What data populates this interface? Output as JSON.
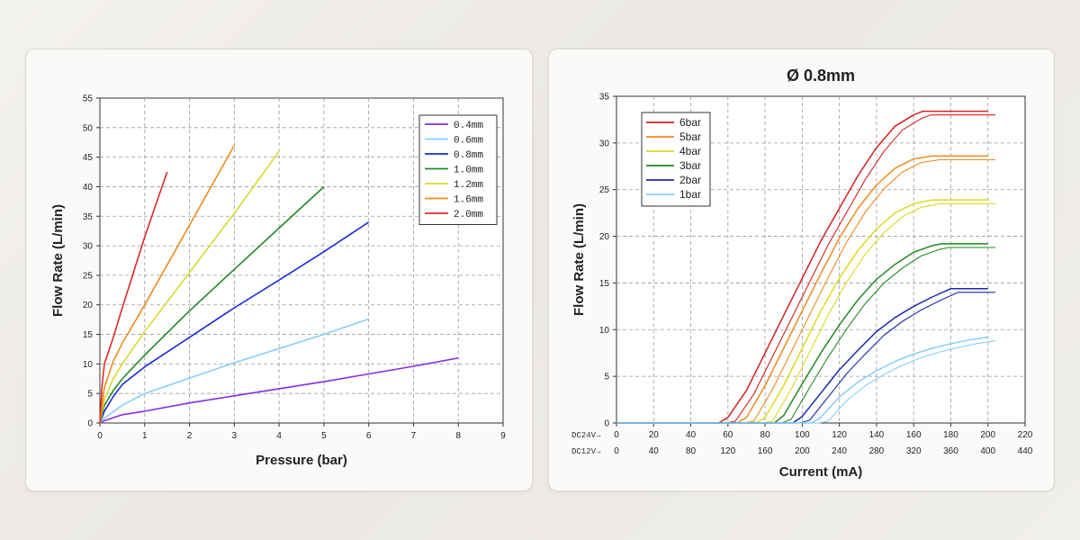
{
  "chart_data": [
    {
      "type": "line",
      "title": "",
      "xlabel": "Pressure (bar)",
      "ylabel": "Flow Rate (L/min)",
      "xlim": [
        0,
        9
      ],
      "ylim": [
        0,
        55
      ],
      "x_ticks": [
        "0",
        "1",
        "2",
        "3",
        "4",
        "5",
        "6",
        "7",
        "8",
        "9"
      ],
      "y_ticks": [
        "0",
        "5",
        "10",
        "15",
        "20",
        "25",
        "30",
        "35",
        "40",
        "45",
        "50",
        "55"
      ],
      "grid": true,
      "legend_position": "top-right",
      "series": [
        {
          "name": "0.4mm",
          "color": "#8a2be2",
          "x": [
            0,
            0.1,
            0.5,
            1,
            2,
            3,
            4,
            5,
            6,
            7,
            8
          ],
          "y": [
            0,
            0.4,
            1.4,
            2.0,
            3.4,
            4.6,
            5.8,
            7.0,
            8.3,
            9.6,
            11.0
          ]
        },
        {
          "name": "0.6mm",
          "color": "#87cefa",
          "x": [
            0,
            0.1,
            0.5,
            1,
            2,
            3,
            4,
            5,
            6
          ],
          "y": [
            0,
            0.8,
            3.0,
            5.0,
            7.6,
            10.2,
            12.6,
            15.0,
            17.6
          ]
        },
        {
          "name": "0.8mm",
          "color": "#1a2ad8",
          "x": [
            0,
            0.1,
            0.3,
            0.5,
            1,
            2,
            3,
            4,
            5,
            6
          ],
          "y": [
            0,
            2.0,
            4.5,
            6.5,
            9.5,
            14.5,
            19.5,
            24.2,
            29.0,
            34.0
          ]
        },
        {
          "name": "1.0mm",
          "color": "#1f8a1f",
          "x": [
            0,
            0.1,
            0.3,
            0.5,
            1,
            2,
            3,
            4,
            5
          ],
          "y": [
            0,
            3.0,
            5.5,
            7.5,
            11.5,
            19.0,
            26.0,
            33.0,
            40.0
          ]
        },
        {
          "name": "1.2mm",
          "color": "#d8d830",
          "x": [
            0,
            0.1,
            0.3,
            0.5,
            1,
            2,
            3,
            4
          ],
          "y": [
            0,
            4.0,
            7.5,
            10.0,
            15.5,
            25.5,
            35.5,
            46.0
          ]
        },
        {
          "name": "1.6mm",
          "color": "#f08a1c",
          "x": [
            0,
            0.1,
            0.3,
            0.5,
            1,
            2,
            3
          ],
          "y": [
            0,
            6.0,
            10.5,
            13.5,
            20.0,
            33.5,
            47.0
          ]
        },
        {
          "name": "2.0mm",
          "color": "#e02828",
          "x": [
            0,
            0.05,
            0.1,
            0.3,
            0.5,
            1,
            1.5
          ],
          "y": [
            0,
            6.5,
            10.0,
            14.5,
            19.5,
            31.5,
            42.5
          ]
        }
      ]
    },
    {
      "type": "line",
      "title": "Ø 0.8mm",
      "xlabel": "Current (mA)",
      "ylabel": "Flow Rate (L/min)",
      "xlim": [
        0,
        220
      ],
      "ylim": [
        0,
        35
      ],
      "x_ticks_dc24v": [
        "0",
        "20",
        "40",
        "60",
        "80",
        "100",
        "120",
        "140",
        "160",
        "180",
        "200",
        "220"
      ],
      "x_ticks_dc12v": [
        "0",
        "40",
        "80",
        "120",
        "160",
        "200",
        "240",
        "280",
        "320",
        "360",
        "400",
        "440"
      ],
      "x_axis_row_labels": [
        "DC24V→",
        "DC12V→"
      ],
      "y_ticks": [
        "0",
        "5",
        "10",
        "15",
        "20",
        "25",
        "30",
        "35"
      ],
      "grid": true,
      "legend_position": "top-left",
      "series": [
        {
          "name": "6bar",
          "color": "#d42020",
          "x": [
            0,
            55,
            60,
            70,
            80,
            90,
            100,
            110,
            120,
            130,
            140,
            150,
            160,
            165,
            170,
            200
          ],
          "y": [
            0,
            0,
            0.6,
            3.5,
            7.5,
            11.5,
            15.5,
            19.5,
            23.0,
            26.5,
            29.5,
            31.8,
            33.0,
            33.4,
            33.4,
            33.4
          ]
        },
        {
          "name": "5bar",
          "color": "#f08a1c",
          "x": [
            0,
            65,
            70,
            80,
            90,
            100,
            110,
            120,
            130,
            140,
            150,
            160,
            170,
            200
          ],
          "y": [
            0,
            0,
            0.6,
            4.0,
            8.0,
            12.0,
            16.0,
            19.8,
            23.0,
            25.5,
            27.3,
            28.3,
            28.6,
            28.6
          ]
        },
        {
          "name": "4bar",
          "color": "#e0d820",
          "x": [
            0,
            75,
            80,
            90,
            100,
            110,
            120,
            130,
            140,
            150,
            160,
            170,
            175,
            200
          ],
          "y": [
            0,
            0,
            0.6,
            4.0,
            8.0,
            12.0,
            15.5,
            18.5,
            20.8,
            22.5,
            23.5,
            23.9,
            23.9,
            23.9
          ]
        },
        {
          "name": "3bar",
          "color": "#1f8a1f",
          "x": [
            0,
            85,
            90,
            100,
            110,
            120,
            130,
            140,
            150,
            160,
            170,
            175,
            200
          ],
          "y": [
            0,
            0,
            0.8,
            4.2,
            7.5,
            10.5,
            13.2,
            15.4,
            17.0,
            18.3,
            19.0,
            19.2,
            19.2
          ]
        },
        {
          "name": "2bar",
          "color": "#1a2aa8",
          "x": [
            0,
            95,
            100,
            110,
            120,
            130,
            140,
            150,
            160,
            170,
            180,
            200
          ],
          "y": [
            0,
            0,
            0.7,
            3.2,
            5.7,
            7.8,
            9.8,
            11.3,
            12.5,
            13.5,
            14.4,
            14.4
          ]
        },
        {
          "name": "1bar",
          "color": "#87cefa",
          "x": [
            0,
            105,
            110,
            120,
            130,
            140,
            150,
            160,
            170,
            180,
            190,
            200
          ],
          "y": [
            0,
            0,
            0.6,
            2.8,
            4.4,
            5.6,
            6.6,
            7.4,
            8.0,
            8.5,
            8.9,
            9.2
          ]
        }
      ]
    }
  ]
}
